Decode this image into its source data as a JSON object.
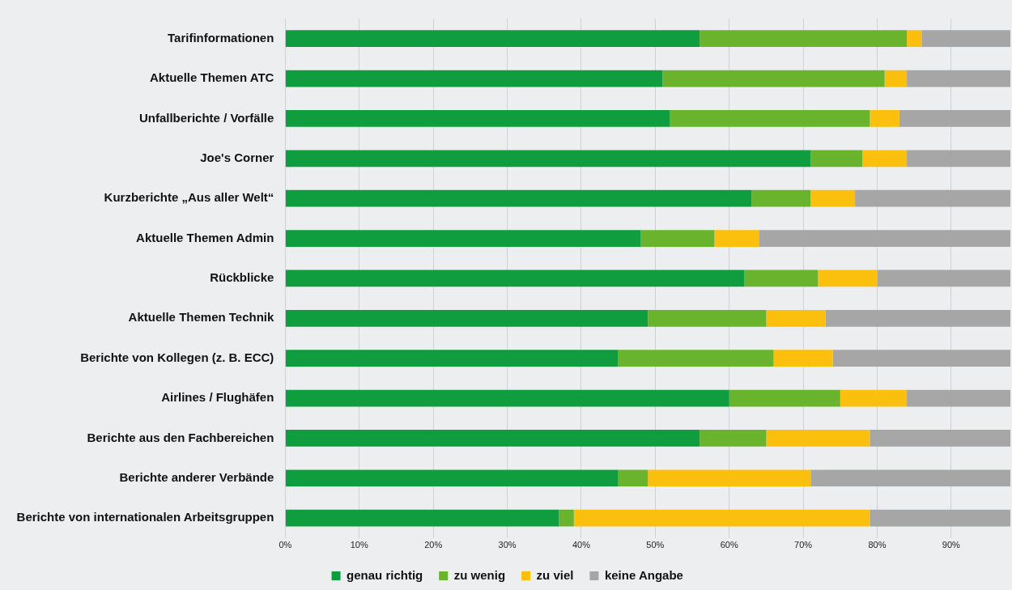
{
  "chart_data": {
    "type": "bar",
    "orientation": "horizontal",
    "stacked": true,
    "grid": "x",
    "legend": "bottom",
    "categories": [
      "Tarifinformationen",
      "Aktuelle Themen ATC",
      "Unfallberichte / Vorfälle",
      "Joe's Corner",
      "Kurzberichte „Aus aller Welt“",
      "Aktuelle Themen Admin",
      "Rückblicke",
      "Aktuelle Themen Technik",
      "Berichte von Kollegen (z. B. ECC)",
      "Airlines / Flughäfen",
      "Berichte aus den Fachbereichen",
      "Berichte anderer Verbände",
      "Berichte von internationalen Arbeitsgruppen"
    ],
    "series": [
      {
        "name": "genau richtig",
        "color": "#109d3f",
        "values": [
          56,
          51,
          52,
          71,
          63,
          48,
          62,
          49,
          45,
          60,
          56,
          45,
          37
        ]
      },
      {
        "name": "zu wenig",
        "color": "#6ab42d",
        "values": [
          28,
          30,
          27,
          7,
          8,
          10,
          10,
          16,
          21,
          15,
          9,
          4,
          2
        ]
      },
      {
        "name": "zu viel",
        "color": "#fbbf0e",
        "values": [
          2,
          3,
          4,
          6,
          6,
          6,
          8,
          8,
          8,
          9,
          14,
          22,
          40
        ]
      },
      {
        "name": "keine Angabe",
        "color": "#a6a6a6",
        "values": [
          12,
          14,
          15,
          14,
          21,
          34,
          18,
          25,
          24,
          14,
          19,
          27,
          19
        ]
      }
    ],
    "xlim": [
      0,
      98
    ],
    "xticks": [
      {
        "value": 0,
        "label": "0%"
      },
      {
        "value": 10,
        "label": "10%"
      },
      {
        "value": 20,
        "label": "20%"
      },
      {
        "value": 30,
        "label": "30%"
      },
      {
        "value": 40,
        "label": "40%"
      },
      {
        "value": 50,
        "label": "50%"
      },
      {
        "value": 60,
        "label": "60%"
      },
      {
        "value": 70,
        "label": "70%"
      },
      {
        "value": 80,
        "label": "80%"
      },
      {
        "value": 90,
        "label": "90%"
      }
    ]
  }
}
